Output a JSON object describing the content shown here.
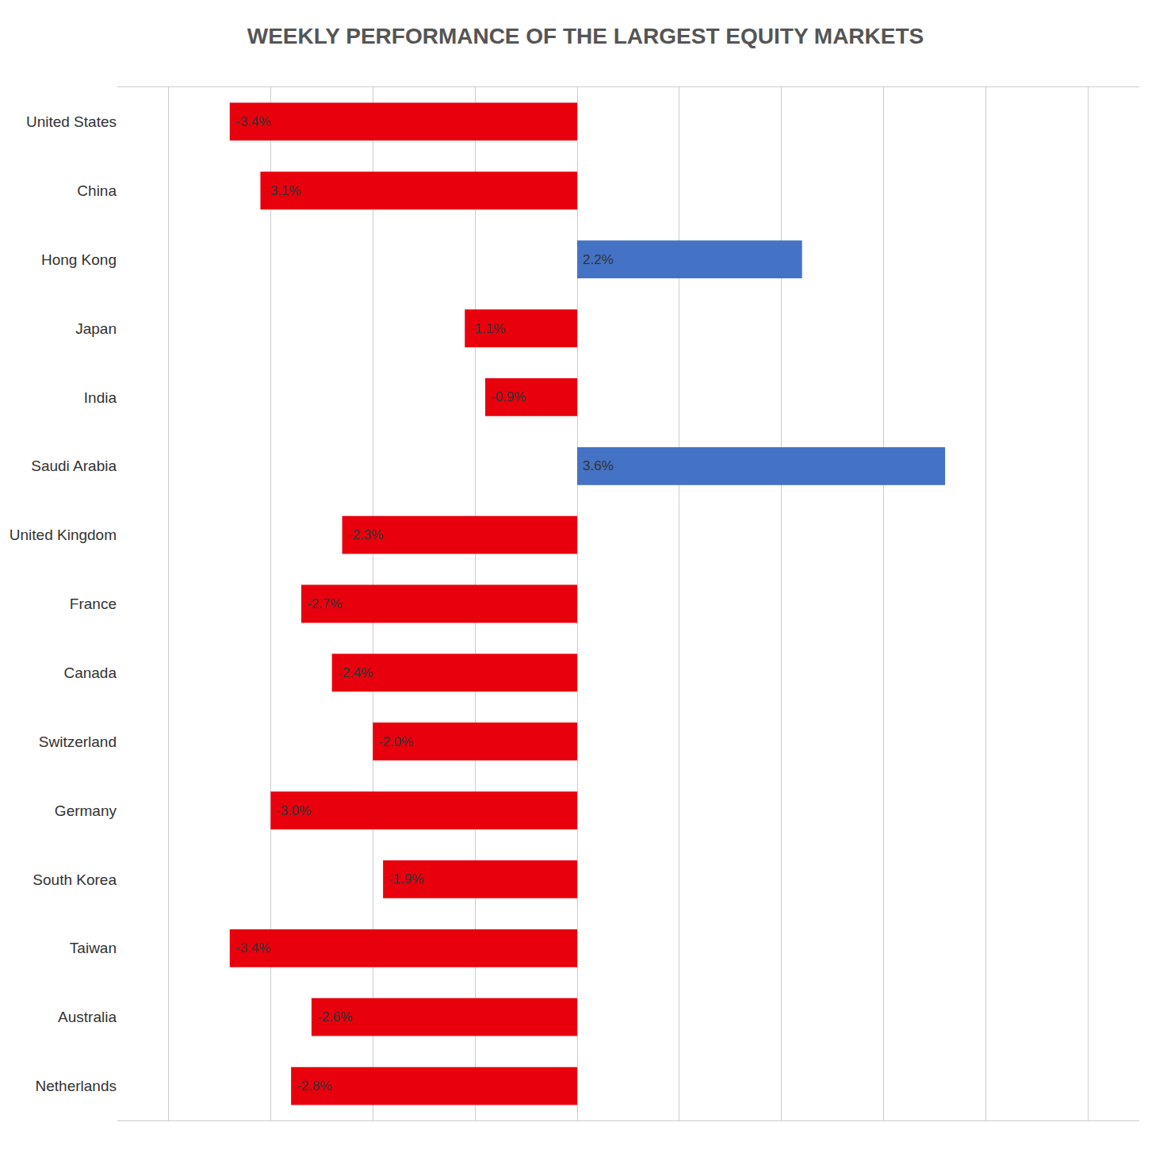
{
  "chart_data": {
    "type": "bar",
    "orientation": "horizontal",
    "title": "WEEKLY PERFORMANCE OF THE LARGEST EQUITY MARKETS",
    "categories": [
      "United States",
      "China",
      "Hong Kong",
      "Japan",
      "India",
      "Saudi Arabia",
      "United Kingdom",
      "France",
      "Canada",
      "Switzerland",
      "Germany",
      "South Korea",
      "Taiwan",
      "Australia",
      "Netherlands"
    ],
    "values": [
      -3.4,
      -3.1,
      2.2,
      -1.1,
      -0.9,
      3.6,
      -2.3,
      -2.7,
      -2.4,
      -2.0,
      -3.0,
      -1.9,
      -3.4,
      -2.6,
      -2.8
    ],
    "value_labels": [
      "-3.4%",
      "-3.1%",
      "2.2%",
      "-1.1%",
      "-0.9%",
      "3.6%",
      "-2.3%",
      "-2.7%",
      "-2.4%",
      "-2.0%",
      "-3.0%",
      "-1.9%",
      "-3.4%",
      "-2.6%",
      "-2.8%"
    ],
    "colors": [
      "#e8000d",
      "#e8000d",
      "#4472c4",
      "#e8000d",
      "#e8000d",
      "#4472c4",
      "#e8000d",
      "#e8000d",
      "#e8000d",
      "#e8000d",
      "#e8000d",
      "#e8000d",
      "#e8000d",
      "#e8000d",
      "#e8000d"
    ],
    "xlim": [
      -4.5,
      5.5
    ],
    "xticks": [
      -4,
      -3,
      -2,
      -1,
      0,
      1,
      2,
      3,
      4,
      5
    ],
    "grid": true,
    "data_labels": true,
    "tick_labels": "y"
  }
}
